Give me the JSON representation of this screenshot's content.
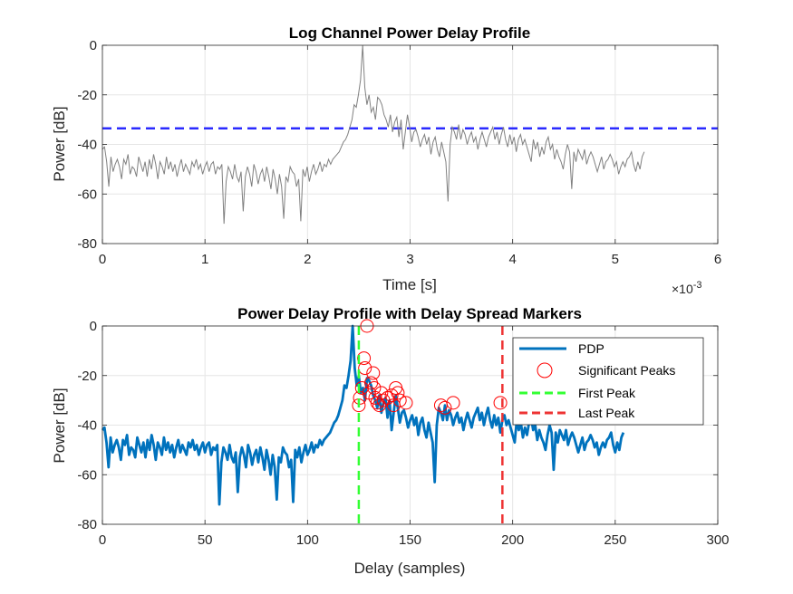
{
  "chart_data": [
    {
      "type": "line",
      "title": "Log Channel Power Delay Profile",
      "xlabel": "Time [s]",
      "ylabel": "Power [dB]",
      "xlim": [
        0,
        6
      ],
      "ylim": [
        -80,
        0
      ],
      "xticks": [
        "0",
        "1",
        "2",
        "3",
        "4",
        "5",
        "6"
      ],
      "yticks": [
        "0",
        "-20",
        "-40",
        "-60",
        "-80"
      ],
      "x_exponent_label": "×10",
      "x_exponent_power": "-3",
      "grid": true,
      "threshold_db": -33.5,
      "series": [
        {
          "color": "#808080",
          "x_step": 0.0208,
          "values": [
            -42,
            -41,
            -47,
            -57,
            -45,
            -51,
            -48,
            -46,
            -49,
            -54,
            -46,
            -48,
            -44,
            -52,
            -49,
            -50,
            -53,
            -45,
            -48,
            -51,
            -47,
            -53,
            -46,
            -50,
            -44,
            -48,
            -54,
            -47,
            -49,
            -52,
            -45,
            -50,
            -47,
            -51,
            -48,
            -53,
            -49,
            -46,
            -51,
            -48,
            -50,
            -52,
            -47,
            -49,
            -46,
            -50,
            -48,
            -52,
            -49,
            -47,
            -51,
            -48,
            -47,
            -52,
            -49,
            -50,
            -48,
            -72,
            -55,
            -49,
            -51,
            -54,
            -48,
            -53,
            -55,
            -51,
            -67,
            -53,
            -49,
            -52,
            -57,
            -48,
            -51,
            -56,
            -52,
            -50,
            -55,
            -49,
            -53,
            -58,
            -50,
            -54,
            -60,
            -52,
            -57,
            -70,
            -53,
            -55,
            -49,
            -51,
            -52,
            -57,
            -54,
            -71,
            -50,
            -53,
            -49,
            -55,
            -51,
            -48,
            -52,
            -50,
            -47,
            -51,
            -48,
            -49,
            -46,
            -48,
            -46,
            -45,
            -44,
            -43,
            -41,
            -39,
            -38,
            -36,
            -33,
            -30,
            -24,
            -25,
            -20,
            -14,
            0,
            -17,
            -24,
            -20,
            -27,
            -25,
            -30,
            -21,
            -22,
            -24,
            -28,
            -30,
            -33,
            -28,
            -35,
            -31,
            -29,
            -37,
            -30,
            -42,
            -35,
            -28,
            -33,
            -39,
            -35,
            -34,
            -37,
            -41,
            -38,
            -36,
            -40,
            -37,
            -44,
            -39,
            -37,
            -42,
            -45,
            -39,
            -43,
            -47,
            -63,
            -40,
            -33,
            -35,
            -38,
            -32,
            -38,
            -34,
            -36,
            -40,
            -37,
            -35,
            -39,
            -37,
            -42,
            -38,
            -35,
            -38,
            -41,
            -37,
            -35,
            -33,
            -38,
            -35,
            -40,
            -36,
            -33,
            -38,
            -41,
            -36,
            -40,
            -37,
            -43,
            -38,
            -36,
            -40,
            -38,
            -41,
            -44,
            -47,
            -38,
            -42,
            -39,
            -45,
            -41,
            -44,
            -39,
            -37,
            -42,
            -40,
            -46,
            -42,
            -45,
            -47,
            -50,
            -44,
            -40,
            -43,
            -58,
            -43,
            -47,
            -42,
            -44,
            -46,
            -42,
            -48,
            -45,
            -43,
            -45,
            -48,
            -51,
            -48,
            -45,
            -50,
            -47,
            -46,
            -44,
            -46,
            -49,
            -47,
            -52,
            -49,
            -47,
            -49,
            -46,
            -45,
            -43,
            -48,
            -51,
            -47,
            -50,
            -45,
            -43
          ]
        }
      ]
    },
    {
      "type": "line",
      "title": "Power Delay Profile with Delay Spread Markers",
      "xlabel": "Delay (samples)",
      "ylabel": "Power [dB]",
      "xlim": [
        0,
        300
      ],
      "ylim": [
        -80,
        0
      ],
      "xticks": [
        "0",
        "50",
        "100",
        "150",
        "200",
        "250",
        "300"
      ],
      "yticks": [
        "0",
        "-20",
        "-40",
        "-60",
        "-80"
      ],
      "grid": true,
      "legend_position": "top-right",
      "legend": [
        "PDP",
        "Significant Peaks",
        "First Peak",
        "Last Peak"
      ],
      "first_peak": 125,
      "last_peak": 195,
      "series": [
        {
          "name": "PDP",
          "color": "#0072BD",
          "x_step": 1,
          "values": [
            -42,
            -41,
            -47,
            -57,
            -45,
            -51,
            -48,
            -46,
            -49,
            -54,
            -46,
            -48,
            -44,
            -52,
            -49,
            -50,
            -53,
            -45,
            -48,
            -51,
            -47,
            -53,
            -46,
            -50,
            -44,
            -48,
            -54,
            -47,
            -49,
            -52,
            -45,
            -50,
            -47,
            -51,
            -48,
            -53,
            -49,
            -46,
            -51,
            -48,
            -50,
            -52,
            -47,
            -49,
            -46,
            -50,
            -48,
            -52,
            -49,
            -47,
            -51,
            -48,
            -47,
            -52,
            -49,
            -50,
            -48,
            -72,
            -55,
            -49,
            -51,
            -54,
            -48,
            -53,
            -55,
            -51,
            -67,
            -53,
            -49,
            -52,
            -57,
            -48,
            -51,
            -56,
            -52,
            -50,
            -55,
            -49,
            -53,
            -58,
            -50,
            -54,
            -60,
            -52,
            -57,
            -70,
            -53,
            -55,
            -49,
            -51,
            -52,
            -57,
            -54,
            -71,
            -50,
            -53,
            -49,
            -55,
            -51,
            -48,
            -52,
            -50,
            -47,
            -51,
            -48,
            -49,
            -46,
            -48,
            -46,
            -45,
            -44,
            -43,
            -41,
            -39,
            -38,
            -36,
            -33,
            -30,
            -24,
            -25,
            -20,
            -14,
            0,
            -17,
            -24,
            -20,
            -27,
            -25,
            -30,
            -21,
            -22,
            -24,
            -28,
            -30,
            -33,
            -28,
            -35,
            -31,
            -29,
            -37,
            -30,
            -42,
            -35,
            -28,
            -33,
            -39,
            -35,
            -34,
            -37,
            -41,
            -38,
            -36,
            -40,
            -37,
            -44,
            -39,
            -37,
            -42,
            -45,
            -39,
            -43,
            -47,
            -63,
            -40,
            -33,
            -35,
            -38,
            -32,
            -38,
            -34,
            -36,
            -40,
            -37,
            -35,
            -39,
            -37,
            -42,
            -38,
            -35,
            -38,
            -41,
            -37,
            -35,
            -33,
            -38,
            -35,
            -40,
            -36,
            -33,
            -38,
            -41,
            -36,
            -40,
            -37,
            -43,
            -38,
            -36,
            -40,
            -38,
            -41,
            -44,
            -47,
            -38,
            -42,
            -39,
            -45,
            -41,
            -44,
            -39,
            -37,
            -42,
            -40,
            -46,
            -42,
            -45,
            -47,
            -50,
            -44,
            -40,
            -43,
            -58,
            -43,
            -47,
            -42,
            -44,
            -46,
            -42,
            -48,
            -45,
            -43,
            -45,
            -48,
            -51,
            -48,
            -45,
            -50,
            -47,
            -46,
            -44,
            -46,
            -49,
            -47,
            -52,
            -49,
            -47,
            -49,
            -46,
            -45,
            -43,
            -48,
            -51,
            -47,
            -50,
            -45,
            -43
          ]
        }
      ],
      "peaks": [
        {
          "x": 125,
          "y": -32
        },
        {
          "x": 125.5,
          "y": -29
        },
        {
          "x": 126.5,
          "y": -25
        },
        {
          "x": 127.5,
          "y": -13
        },
        {
          "x": 128,
          "y": -17
        },
        {
          "x": 129,
          "y": 0
        },
        {
          "x": 130,
          "y": -27
        },
        {
          "x": 131,
          "y": -23
        },
        {
          "x": 132,
          "y": -19
        },
        {
          "x": 132.5,
          "y": -25
        },
        {
          "x": 133,
          "y": -29
        },
        {
          "x": 134,
          "y": -31
        },
        {
          "x": 135,
          "y": -32
        },
        {
          "x": 136,
          "y": -27
        },
        {
          "x": 137,
          "y": -30
        },
        {
          "x": 139,
          "y": -29
        },
        {
          "x": 141,
          "y": -28
        },
        {
          "x": 142,
          "y": -32
        },
        {
          "x": 143,
          "y": -25
        },
        {
          "x": 144,
          "y": -27
        },
        {
          "x": 145,
          "y": -30
        },
        {
          "x": 148,
          "y": -31
        },
        {
          "x": 165,
          "y": -32
        },
        {
          "x": 167,
          "y": -33
        },
        {
          "x": 171,
          "y": -31
        },
        {
          "x": 194,
          "y": -31
        }
      ]
    }
  ]
}
